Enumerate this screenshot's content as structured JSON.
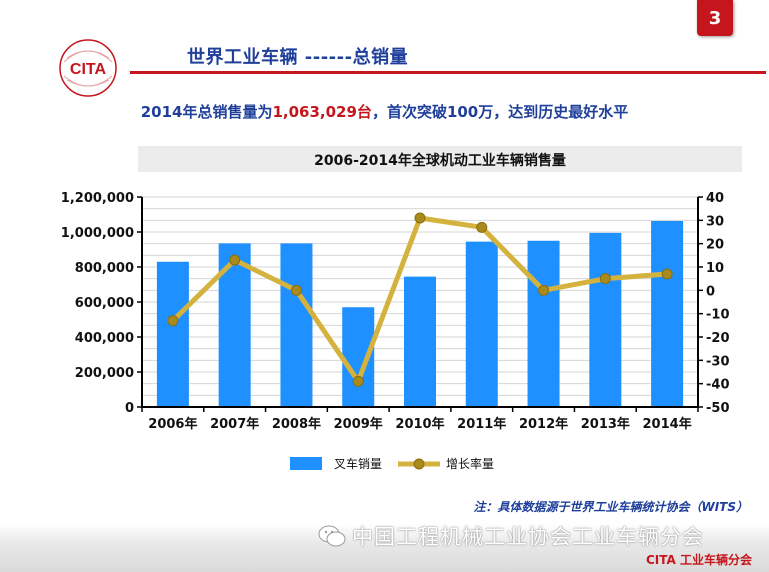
{
  "page_number": "3",
  "logo": {
    "text": "CITA"
  },
  "slide_title": "世界工业车辆 ------总销量",
  "headline": {
    "prefix": "2014年总销售量为",
    "highlight": "1,063,029台",
    "suffix": "，首次突破100万，达到历史最好水平"
  },
  "note": "注：具体数据源于世界工业车辆统计协会（WITS）",
  "watermark": "中国工程机械工业协会工业车辆分会",
  "footer": "CITA 工业车辆分会",
  "colors": {
    "accent": "#c4161c",
    "title_blue": "#1f3f9a",
    "bar": "#1e90ff",
    "line": "#d4b23e"
  },
  "chart_data": {
    "type": "bar",
    "title": "2006-2014年全球机动工业车辆销售量",
    "categories": [
      "2006年",
      "2007年",
      "2008年",
      "2009年",
      "2010年",
      "2011年",
      "2012年",
      "2013年",
      "2014年"
    ],
    "series": [
      {
        "name": "叉车销量",
        "type": "bar",
        "axis": "left",
        "values": [
          830000,
          935000,
          935000,
          570000,
          745000,
          945000,
          950000,
          995000,
          1063029
        ]
      },
      {
        "name": "增长率量",
        "type": "line",
        "axis": "right",
        "values": [
          -13,
          13,
          0,
          -39,
          31,
          27,
          0,
          5,
          7
        ]
      }
    ],
    "y_left": {
      "min": 0,
      "max": 1200000,
      "step": 200000,
      "ticks": [
        "0",
        "200,000",
        "400,000",
        "600,000",
        "800,000",
        "1,000,000",
        "1,200,000"
      ]
    },
    "y_right": {
      "min": -50,
      "max": 40,
      "step": 10,
      "ticks": [
        "-50",
        "-40",
        "-30",
        "-20",
        "-10",
        "0",
        "10",
        "20",
        "30",
        "40"
      ]
    },
    "grid": true,
    "legend": "bottom-center"
  }
}
